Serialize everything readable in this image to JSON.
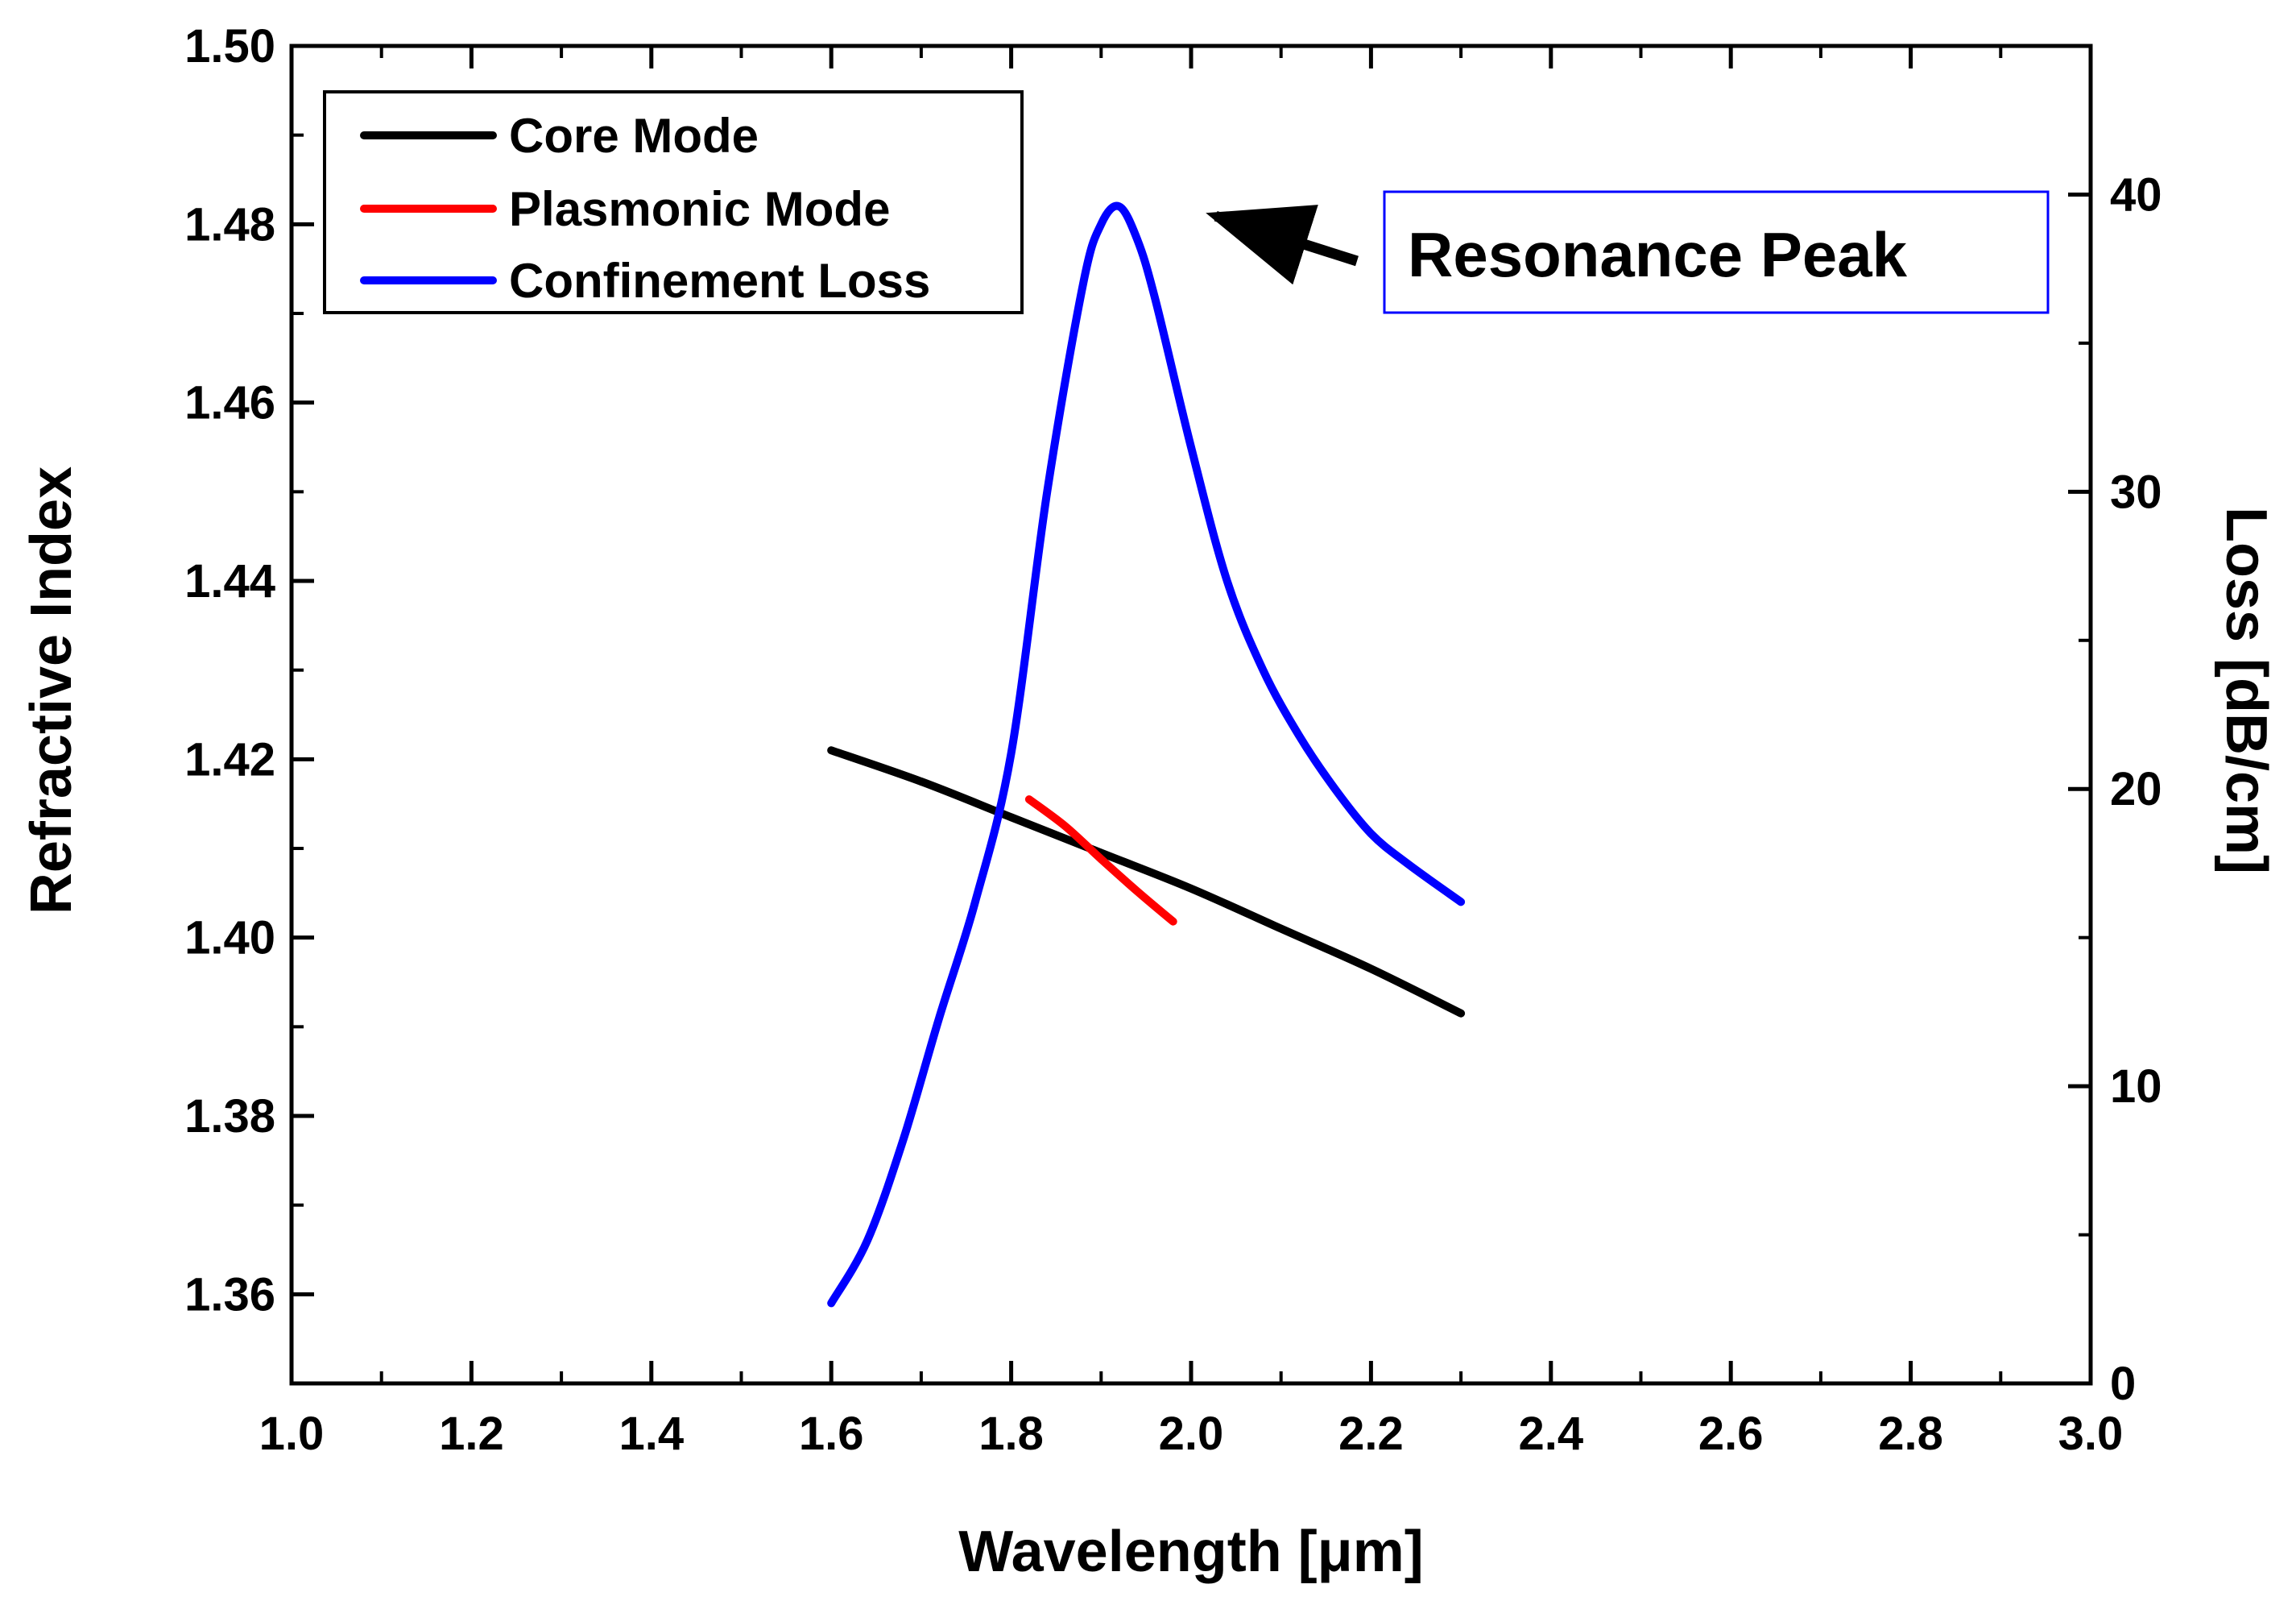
{
  "chart_data": {
    "type": "line",
    "dual_axis": true,
    "xlabel": "Wavelength [μm]",
    "ylabel_left": "Refractive Index",
    "ylabel_right": "Loss [dB/cm]",
    "xlim": [
      1.0,
      3.0
    ],
    "ylim_left": [
      1.35,
      1.5
    ],
    "ylim_right": [
      0,
      45
    ],
    "x_ticks": [
      "1.0",
      "1.2",
      "1.4",
      "1.6",
      "1.8",
      "2.0",
      "2.2",
      "2.4",
      "2.6",
      "2.8",
      "3.0"
    ],
    "y_left_ticks": [
      "1.36",
      "1.38",
      "1.40",
      "1.42",
      "1.44",
      "1.46",
      "1.48",
      "1.50"
    ],
    "y_right_ticks": [
      "0",
      "10",
      "20",
      "30",
      "40"
    ],
    "legend_position": "top-left",
    "grid": false,
    "series": [
      {
        "name": "Core Mode",
        "axis": "left",
        "color": "#000000",
        "x": [
          1.6,
          1.7,
          1.8,
          1.9,
          2.0,
          2.1,
          2.2,
          2.3
        ],
        "y": [
          1.421,
          1.4175,
          1.4135,
          1.4095,
          1.4055,
          1.401,
          1.3965,
          1.3915
        ]
      },
      {
        "name": "Plasmonic Mode",
        "axis": "left",
        "color": "#ff0000",
        "x": [
          1.82,
          1.86,
          1.9,
          1.94,
          1.98
        ],
        "y": [
          1.4155,
          1.4125,
          1.4088,
          1.4052,
          1.4018
        ]
      },
      {
        "name": "Confinement Loss",
        "axis": "right",
        "color": "#0000ff",
        "x": [
          1.6,
          1.64,
          1.68,
          1.72,
          1.76,
          1.8,
          1.84,
          1.88,
          1.9,
          1.92,
          1.94,
          1.96,
          2.0,
          2.04,
          2.08,
          2.12,
          2.16,
          2.2,
          2.24,
          2.3
        ],
        "y": [
          2.7,
          4.8,
          8.2,
          12.3,
          16.2,
          21.2,
          30.0,
          37.0,
          39.0,
          39.6,
          38.5,
          36.5,
          31.5,
          27.0,
          24.0,
          21.8,
          20.0,
          18.5,
          17.5,
          16.2
        ]
      }
    ],
    "annotations": [
      {
        "text": "Resonance Peak",
        "points_to": {
          "x": 1.92,
          "y_right": 39.6
        }
      }
    ]
  }
}
